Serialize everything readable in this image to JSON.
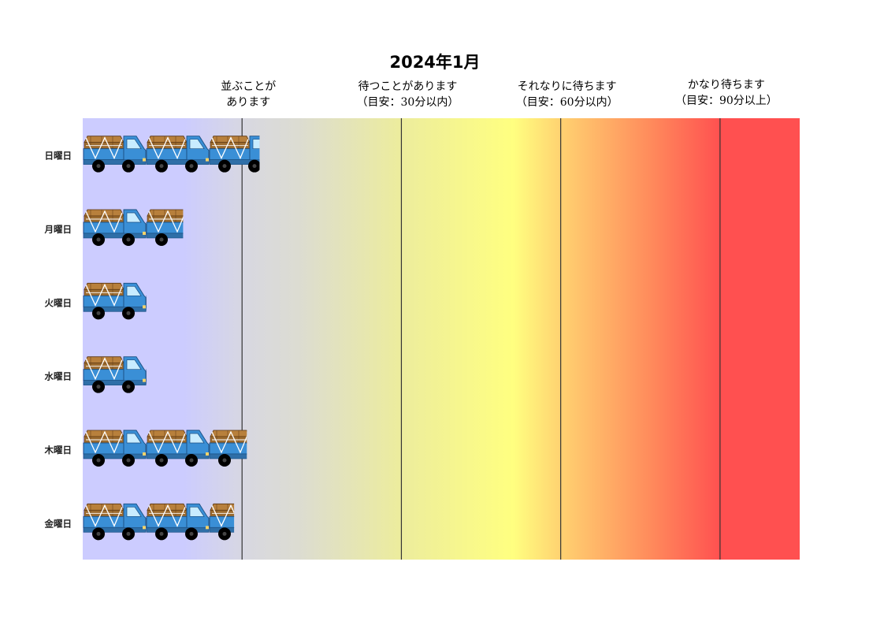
{
  "chart_data": {
    "type": "bar",
    "title": "2024年1月",
    "categories": [
      "日曜日",
      "月曜日",
      "火曜日",
      "水曜日",
      "木曜日",
      "金曜日"
    ],
    "values": [
      1.11,
      0.63,
      0.4,
      0.4,
      1.03,
      0.95
    ],
    "xlim": [
      0,
      4.5
    ],
    "marker": "truck",
    "zones": [
      {
        "lines": [
          "並ぶことが",
          "あります"
        ],
        "color": "#ccccff"
      },
      {
        "lines": [
          "待つことがあります",
          "（目安：30分以内）"
        ],
        "color": "#d9d9d9"
      },
      {
        "lines": [
          "それなりに待ちます",
          "（目安：60分以内）"
        ],
        "color": "#ffff80"
      },
      {
        "lines": [
          "かなり待ちます",
          "（目安：90分以上）"
        ],
        "color": "#ff5050"
      }
    ],
    "zone_boundaries": [
      1,
      2,
      3,
      4
    ],
    "grid": true,
    "legend": "none"
  }
}
